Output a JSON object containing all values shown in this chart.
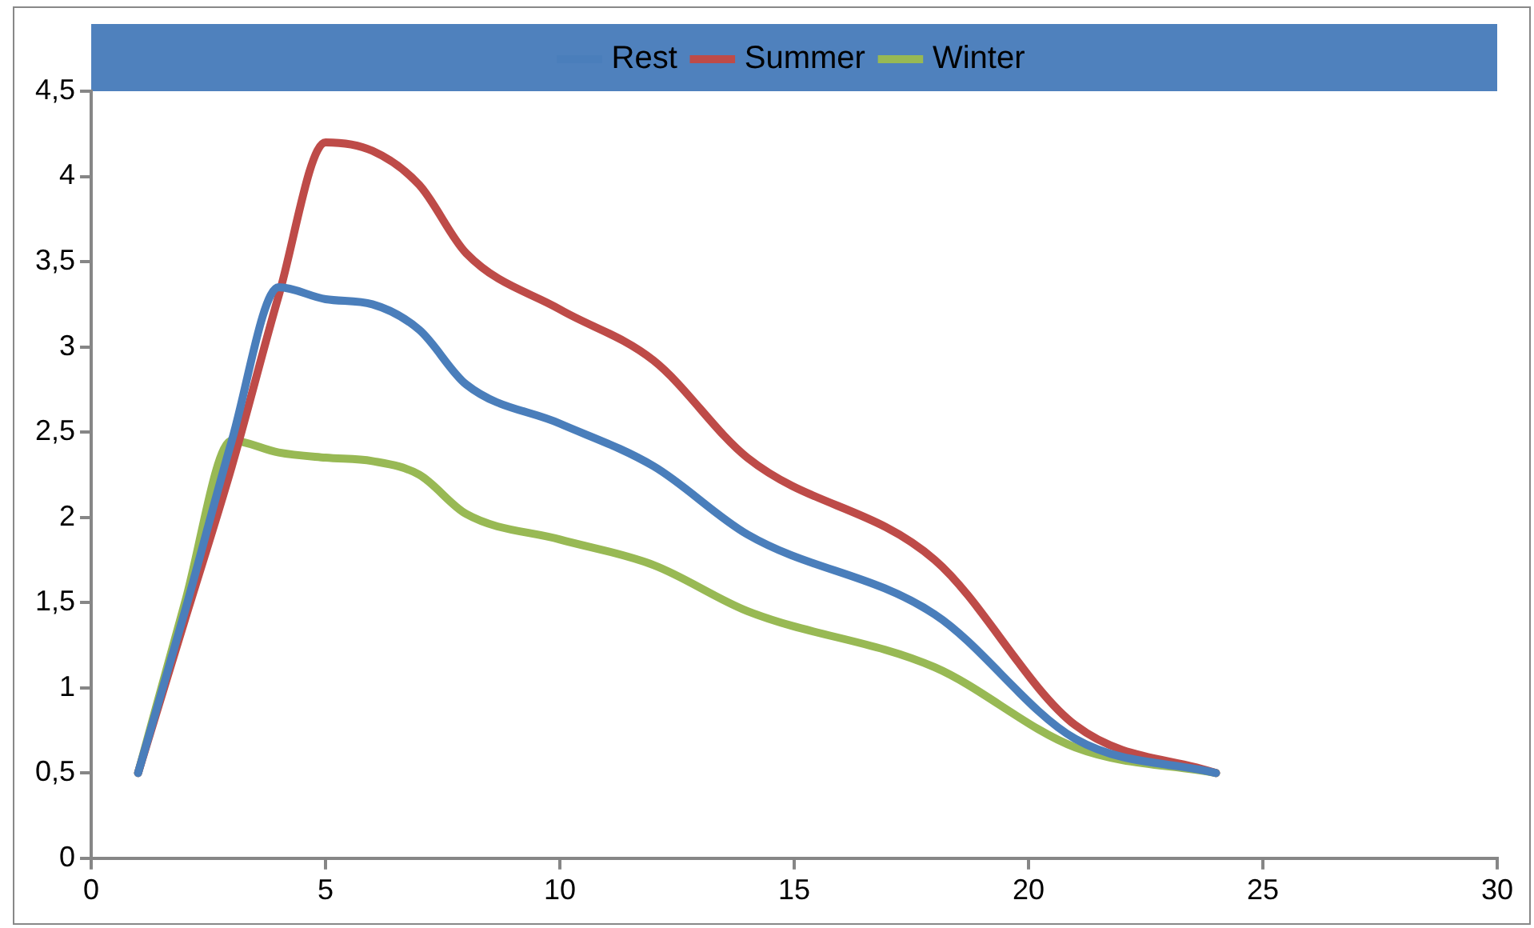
{
  "chart_data": {
    "type": "line",
    "x": [
      1,
      2,
      3,
      4,
      5,
      6,
      7,
      8,
      10,
      12,
      14,
      18,
      21,
      24
    ],
    "series": [
      {
        "name": "Rest",
        "color": "#4a7ebb",
        "values": [
          0.5,
          1.45,
          2.45,
          3.35,
          3.28,
          3.25,
          3.1,
          2.78,
          2.55,
          2.3,
          1.9,
          1.43,
          0.7,
          0.5
        ]
      },
      {
        "name": "Summer",
        "color": "#be4b48",
        "values": [
          0.5,
          1.4,
          2.3,
          3.3,
          4.2,
          4.15,
          3.95,
          3.55,
          3.22,
          2.92,
          2.35,
          1.75,
          0.78,
          0.5
        ]
      },
      {
        "name": "Winter",
        "color": "#98b954",
        "values": [
          0.5,
          1.5,
          2.45,
          2.38,
          2.35,
          2.33,
          2.25,
          2.02,
          1.87,
          1.72,
          1.45,
          1.12,
          0.65,
          0.5
        ]
      }
    ],
    "xlim": [
      0,
      30
    ],
    "xticks": [
      0,
      5,
      10,
      15,
      20,
      25,
      30
    ],
    "ylim": [
      0,
      4.5
    ],
    "yticks": [
      0,
      {
        "value": 0.5,
        "label": "0,5"
      },
      1,
      {
        "value": 1.5,
        "label": "1,5"
      },
      2,
      {
        "value": 2.5,
        "label": "2,5"
      },
      3,
      {
        "value": 3.5,
        "label": "3,5"
      },
      4,
      {
        "value": 4.5,
        "label": "4,5"
      }
    ],
    "legend": "top",
    "marker": "none",
    "line_style": "solid",
    "grid": false
  }
}
